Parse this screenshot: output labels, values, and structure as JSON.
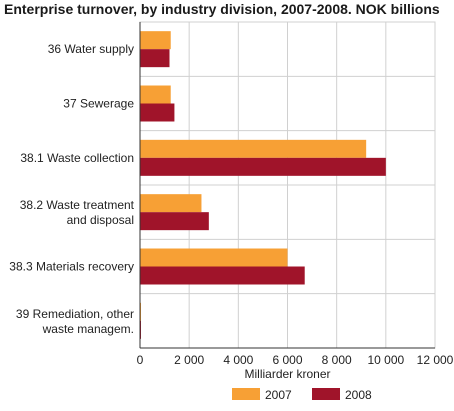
{
  "chart_data": {
    "type": "bar",
    "orientation": "horizontal",
    "title": "Enterprise turnover, by industry division, 2007-2008. NOK billions",
    "xlabel": "Milliarder kroner",
    "ylabel": "",
    "categories": [
      [
        "36 Water supply"
      ],
      [
        "37 Sewerage"
      ],
      [
        "38.1 Waste collection"
      ],
      [
        "38.2 Waste treatment",
        "and disposal"
      ],
      [
        "38.3 Materials recovery"
      ],
      [
        "39 Remediation, other",
        "waste managem."
      ]
    ],
    "series": [
      {
        "name": "2007",
        "color": "#f7a035",
        "values": [
          1250,
          1250,
          9200,
          2500,
          6000,
          20
        ]
      },
      {
        "name": "2008",
        "color": "#a0142a",
        "values": [
          1200,
          1400,
          10000,
          2800,
          6700,
          30
        ]
      }
    ],
    "xlim": [
      0,
      12000
    ],
    "xticks": [
      0,
      2000,
      4000,
      6000,
      8000,
      10000,
      12000
    ],
    "xtick_labels": [
      "0",
      "2 000",
      "4 000",
      "6 000",
      "8 000",
      "10 000",
      "12 000"
    ],
    "grid": "vertical",
    "legend": "bottom"
  }
}
